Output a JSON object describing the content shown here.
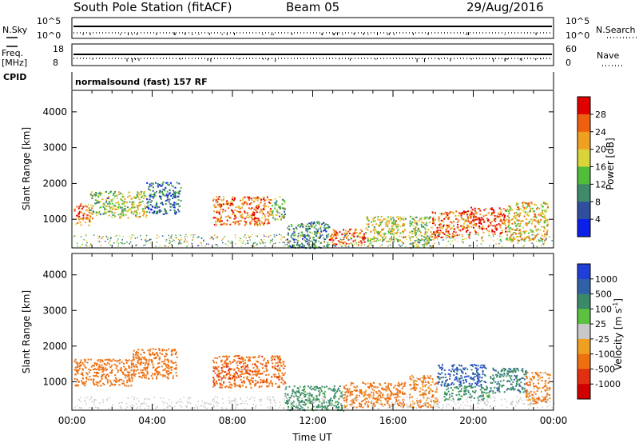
{
  "header": {
    "station": "South Pole Station (fitACF)",
    "beam": "Beam 05",
    "date": "29/Aug/2016"
  },
  "param_panels": {
    "left": {
      "nsky": "N.Sky",
      "freq": "Freq.",
      "freq_unit": "[MHz]",
      "cpid": "CPID"
    },
    "right": {
      "nsearch": "N.Search",
      "nave": "Nave"
    },
    "nsky_ticks": [
      "10^5",
      "10^0"
    ],
    "freq_ticks": [
      "18",
      "8"
    ],
    "nave_ticks": [
      "60",
      "0"
    ],
    "cpid_text": "normalsound (fast) 157 RF"
  },
  "chart_data": [
    {
      "type": "heatmap",
      "name": "power",
      "xlabel": "Time UT",
      "ylabel": "Slant Range [km]",
      "xlim": [
        0,
        24
      ],
      "ylim": [
        200,
        4600
      ],
      "yticks": [
        1000,
        2000,
        3000,
        4000
      ],
      "colorbar_label": "Power [dB]",
      "colorbar_ticks": [
        "4",
        "8",
        "12",
        "16",
        "20",
        "24",
        "28"
      ],
      "colorbar_colors": [
        "#0a1fe8",
        "#2f4f9e",
        "#3e8a6a",
        "#4fbd3a",
        "#d9d43a",
        "#f0a020",
        "#ee6010",
        "#e00000"
      ],
      "regions": [
        {
          "t0": 0.1,
          "t1": 1.0,
          "r0": 850,
          "r1": 1450,
          "level": 24
        },
        {
          "t0": 0.9,
          "t1": 1.9,
          "r0": 1100,
          "r1": 1800,
          "level": 14
        },
        {
          "t0": 1.9,
          "t1": 3.7,
          "r0": 1050,
          "r1": 1800,
          "level": 17
        },
        {
          "t0": 3.7,
          "t1": 5.4,
          "r0": 1150,
          "r1": 2050,
          "level": 8
        },
        {
          "t0": 7.0,
          "t1": 9.9,
          "r0": 850,
          "r1": 1650,
          "level": 25
        },
        {
          "t0": 9.9,
          "t1": 10.6,
          "r0": 1000,
          "r1": 1650,
          "level": 14
        },
        {
          "t0": 10.7,
          "t1": 12.8,
          "r0": 200,
          "r1": 950,
          "level": 10
        },
        {
          "t0": 12.8,
          "t1": 14.6,
          "r0": 300,
          "r1": 750,
          "level": 26
        },
        {
          "t0": 14.6,
          "t1": 16.6,
          "r0": 400,
          "r1": 1100,
          "level": 18
        },
        {
          "t0": 16.8,
          "t1": 17.9,
          "r0": 200,
          "r1": 1100,
          "level": 16
        },
        {
          "t0": 17.9,
          "t1": 19.8,
          "r0": 500,
          "r1": 1250,
          "level": 25
        },
        {
          "t0": 19.8,
          "t1": 21.6,
          "r0": 600,
          "r1": 1350,
          "level": 27
        },
        {
          "t0": 21.6,
          "t1": 23.7,
          "r0": 400,
          "r1": 1500,
          "level": 20
        }
      ]
    },
    {
      "type": "heatmap",
      "name": "velocity",
      "xlabel": "Time UT",
      "ylabel": "Slant Range [km]",
      "xlim": [
        0,
        24
      ],
      "ylim": [
        200,
        4600
      ],
      "yticks": [
        1000,
        2000,
        3000,
        4000
      ],
      "xticklabels": [
        "00:00",
        "04:00",
        "08:00",
        "12:00",
        "16:00",
        "20:00",
        "00:00"
      ],
      "xticks": [
        0,
        4,
        8,
        12,
        16,
        20,
        24
      ],
      "colorbar_label": "Velocity [m s",
      "colorbar_label_sup": "-1",
      "colorbar_label_end": "]",
      "colorbar_ticks": [
        "1000",
        "500",
        "100",
        "25",
        "-25",
        "-100",
        "-500",
        "-1000"
      ],
      "colorbar_colors": [
        "#1f3fd8",
        "#3060a8",
        "#3a8a6a",
        "#5cc040",
        "#c8c8c8",
        "#f0a020",
        "#ee7010",
        "#e03010",
        "#d00000"
      ],
      "regions": [
        {
          "t0": 0.1,
          "t1": 3.0,
          "r0": 900,
          "r1": 1650,
          "level": -300
        },
        {
          "t0": 3.0,
          "t1": 5.2,
          "r0": 1100,
          "r1": 1950,
          "level": -300
        },
        {
          "t0": 7.0,
          "t1": 10.6,
          "r0": 850,
          "r1": 1750,
          "level": -400
        },
        {
          "t0": 10.6,
          "t1": 13.5,
          "r0": 200,
          "r1": 900,
          "level": 200
        },
        {
          "t0": 13.5,
          "t1": 16.6,
          "r0": 300,
          "r1": 1000,
          "level": -200
        },
        {
          "t0": 16.8,
          "t1": 18.2,
          "r0": 300,
          "r1": 1200,
          "level": -150
        },
        {
          "t0": 18.2,
          "t1": 20.6,
          "r0": 900,
          "r1": 1500,
          "level": 800
        },
        {
          "t0": 18.5,
          "t1": 20.8,
          "r0": 500,
          "r1": 900,
          "level": 200
        },
        {
          "t0": 20.8,
          "t1": 22.6,
          "r0": 700,
          "r1": 1400,
          "level": 400
        },
        {
          "t0": 22.6,
          "t1": 23.8,
          "r0": 400,
          "r1": 1300,
          "level": -150
        }
      ]
    }
  ]
}
